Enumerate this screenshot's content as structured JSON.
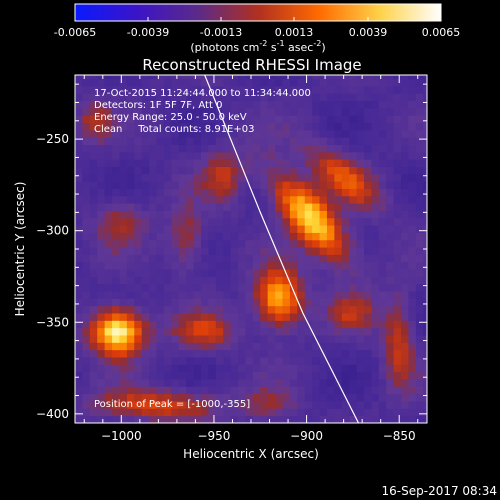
{
  "colorbar": {
    "ticks": [
      "-0.0065",
      "-0.0039",
      "-0.0013",
      "0.0013",
      "0.0039",
      "0.0065"
    ],
    "unit_prefix": "(photons cm",
    "unit_sup1": "-2",
    "unit_mid": " s",
    "unit_sup2": "-1",
    "unit_mid2": " asec",
    "unit_sup3": "-2",
    "unit_suffix": ")",
    "colors": [
      "#0a1aff",
      "#3b14c8",
      "#5a2a8a",
      "#b03020",
      "#ff6a00",
      "#ffd24a",
      "#ffffff"
    ]
  },
  "footer": {
    "timestamp": "16-Sep-2017 08:34"
  },
  "chart_data": {
    "type": "heatmap",
    "title": "Reconstructed RHESSI Image",
    "xlabel": "Heliocentric X (arcsec)",
    "ylabel": "Heliocentric Y (arcsec)",
    "xlim": [
      -1025,
      -835
    ],
    "ylim": [
      -405,
      -215
    ],
    "x_ticks": [
      -1000,
      -950,
      -900,
      -850
    ],
    "x_tick_labels": [
      "−1000",
      "−950",
      "−900",
      "−850"
    ],
    "y_ticks": [
      -250,
      -300,
      -350,
      -400
    ],
    "y_tick_labels": [
      "−250",
      "−300",
      "−350",
      "−400"
    ],
    "info_lines": [
      "17-Oct-2015 11:24:44.000 to 11:34:44.000",
      "Detectors: 1F 5F 7F, Att 0",
      "Energy Range: 25.0 - 50.0 keV",
      "Clean     Total counts: 8.91E+03"
    ],
    "peak_label": "Position of Peak = [-1000,-355]",
    "peak": [
      -1000,
      -355
    ],
    "sources": [
      {
        "x": -1002,
        "y": -355,
        "amp": 1.0,
        "sx": 10,
        "sy": 9
      },
      {
        "x": -898,
        "y": -293,
        "amp": 0.85,
        "sx": 22,
        "sy": 8,
        "angle": -50
      },
      {
        "x": -915,
        "y": -337,
        "amp": 0.8,
        "sx": 9,
        "sy": 11
      },
      {
        "x": -945,
        "y": -270,
        "amp": 0.35,
        "sx": 8,
        "sy": 10
      },
      {
        "x": -880,
        "y": -270,
        "amp": 0.45,
        "sx": 18,
        "sy": 7,
        "angle": -40
      },
      {
        "x": -955,
        "y": -355,
        "amp": 0.4,
        "sx": 12,
        "sy": 7
      },
      {
        "x": -850,
        "y": -360,
        "amp": 0.4,
        "sx": 6,
        "sy": 18
      },
      {
        "x": -1000,
        "y": -295,
        "amp": 0.3,
        "sx": 10,
        "sy": 9
      },
      {
        "x": -980,
        "y": -395,
        "amp": 0.45,
        "sx": 25,
        "sy": 6
      },
      {
        "x": -875,
        "y": -345,
        "amp": 0.3,
        "sx": 9,
        "sy": 7
      },
      {
        "x": -965,
        "y": -305,
        "amp": 0.35,
        "sx": 7,
        "sy": 12
      },
      {
        "x": -920,
        "y": -395,
        "amp": 0.25,
        "sx": 10,
        "sy": 6
      },
      {
        "x": -1015,
        "y": -240,
        "amp": 0.3,
        "sx": 7,
        "sy": 8
      }
    ],
    "limb": [
      [
        -955,
        -215
      ],
      [
        -925,
        -290
      ],
      [
        -902,
        -345
      ],
      [
        -872,
        -405
      ]
    ]
  }
}
